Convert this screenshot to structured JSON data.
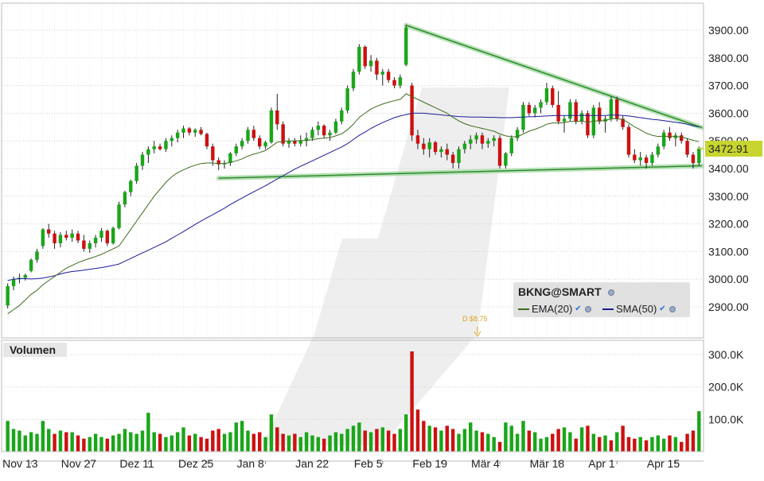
{
  "chart_data": [
    {
      "type": "candlestick",
      "ylim": [
        2860,
        3960
      ],
      "y_ticks": [
        "3900.00",
        "3800.00",
        "3700.00",
        "3600.00",
        "3500.00",
        "3400.00",
        "3300.00",
        "3200.00",
        "3100.00",
        "3000.00",
        "2900.00"
      ],
      "x_ticks": [
        "Nov 13",
        "Nov 27",
        "Dez 11",
        "Dez 25",
        "Jan 8",
        "Jan 22",
        "Feb 5",
        "Feb 19",
        "Mär 4",
        "Mär 18",
        "Apr 1",
        "Apr 15"
      ],
      "last_price": "3472.91",
      "ohlc": [
        [
          2905,
          2985,
          2895,
          2975
        ],
        [
          2975,
          3010,
          2960,
          3000
        ],
        [
          3000,
          3020,
          2985,
          3005
        ],
        [
          3005,
          3020,
          2995,
          3015
        ],
        [
          3030,
          3075,
          3025,
          3070
        ],
        [
          3070,
          3110,
          3060,
          3100
        ],
        [
          3120,
          3185,
          3110,
          3180
        ],
        [
          3180,
          3200,
          3150,
          3165
        ],
        [
          3165,
          3175,
          3110,
          3130
        ],
        [
          3130,
          3170,
          3115,
          3160
        ],
        [
          3160,
          3175,
          3140,
          3150
        ],
        [
          3150,
          3180,
          3135,
          3165
        ],
        [
          3165,
          3175,
          3130,
          3140
        ],
        [
          3140,
          3160,
          3100,
          3110
        ],
        [
          3110,
          3140,
          3095,
          3130
        ],
        [
          3130,
          3160,
          3115,
          3150
        ],
        [
          3150,
          3185,
          3135,
          3175
        ],
        [
          3175,
          3180,
          3120,
          3130
        ],
        [
          3130,
          3190,
          3125,
          3185
        ],
        [
          3185,
          3280,
          3180,
          3270
        ],
        [
          3270,
          3320,
          3260,
          3315
        ],
        [
          3315,
          3360,
          3300,
          3355
        ],
        [
          3355,
          3420,
          3345,
          3410
        ],
        [
          3410,
          3460,
          3395,
          3450
        ],
        [
          3450,
          3480,
          3420,
          3470
        ],
        [
          3470,
          3500,
          3455,
          3480
        ],
        [
          3480,
          3490,
          3465,
          3470
        ],
        [
          3470,
          3510,
          3460,
          3500
        ],
        [
          3500,
          3520,
          3480,
          3510
        ],
        [
          3510,
          3540,
          3495,
          3530
        ],
        [
          3530,
          3555,
          3510,
          3545
        ],
        [
          3545,
          3550,
          3520,
          3530
        ],
        [
          3530,
          3545,
          3515,
          3540
        ],
        [
          3540,
          3550,
          3520,
          3525
        ],
        [
          3525,
          3530,
          3470,
          3480
        ],
        [
          3480,
          3490,
          3410,
          3430
        ],
        [
          3430,
          3440,
          3395,
          3415
        ],
        [
          3415,
          3430,
          3400,
          3420
        ],
        [
          3420,
          3460,
          3410,
          3455
        ],
        [
          3455,
          3490,
          3445,
          3480
        ],
        [
          3480,
          3510,
          3470,
          3500
        ],
        [
          3500,
          3550,
          3490,
          3540
        ],
        [
          3540,
          3555,
          3500,
          3510
        ],
        [
          3510,
          3520,
          3470,
          3480
        ],
        [
          3480,
          3500,
          3470,
          3495
        ],
        [
          3495,
          3620,
          3490,
          3610
        ],
        [
          3610,
          3670,
          3540,
          3560
        ],
        [
          3560,
          3570,
          3480,
          3490
        ],
        [
          3490,
          3510,
          3475,
          3500
        ],
        [
          3500,
          3510,
          3480,
          3490
        ],
        [
          3490,
          3520,
          3480,
          3500
        ],
        [
          3500,
          3530,
          3480,
          3510
        ],
        [
          3510,
          3550,
          3500,
          3540
        ],
        [
          3540,
          3570,
          3520,
          3555
        ],
        [
          3555,
          3560,
          3510,
          3520
        ],
        [
          3520,
          3540,
          3500,
          3530
        ],
        [
          3530,
          3580,
          3525,
          3570
        ],
        [
          3570,
          3620,
          3560,
          3610
        ],
        [
          3610,
          3700,
          3600,
          3690
        ],
        [
          3690,
          3760,
          3680,
          3750
        ],
        [
          3750,
          3850,
          3740,
          3840
        ],
        [
          3840,
          3845,
          3760,
          3770
        ],
        [
          3770,
          3810,
          3750,
          3790
        ],
        [
          3790,
          3800,
          3720,
          3740
        ],
        [
          3740,
          3760,
          3700,
          3750
        ],
        [
          3750,
          3760,
          3710,
          3720
        ],
        [
          3720,
          3730,
          3690,
          3700
        ],
        [
          3700,
          3740,
          3690,
          3730
        ],
        [
          3775,
          3920,
          3770,
          3910
        ],
        [
          3700,
          3710,
          3500,
          3520
        ],
        [
          3520,
          3540,
          3470,
          3490
        ],
        [
          3490,
          3510,
          3450,
          3470
        ],
        [
          3470,
          3510,
          3440,
          3495
        ],
        [
          3495,
          3500,
          3450,
          3460
        ],
        [
          3460,
          3480,
          3440,
          3470
        ],
        [
          3470,
          3490,
          3430,
          3450
        ],
        [
          3450,
          3460,
          3400,
          3420
        ],
        [
          3420,
          3480,
          3400,
          3470
        ],
        [
          3470,
          3500,
          3455,
          3490
        ],
        [
          3490,
          3520,
          3470,
          3505
        ],
        [
          3505,
          3530,
          3490,
          3520
        ],
        [
          3520,
          3530,
          3470,
          3490
        ],
        [
          3490,
          3510,
          3475,
          3500
        ],
        [
          3500,
          3520,
          3480,
          3510
        ],
        [
          3510,
          3520,
          3400,
          3410
        ],
        [
          3410,
          3460,
          3400,
          3455
        ],
        [
          3455,
          3520,
          3445,
          3510
        ],
        [
          3510,
          3550,
          3500,
          3540
        ],
        [
          3540,
          3640,
          3530,
          3630
        ],
        [
          3630,
          3640,
          3590,
          3600
        ],
        [
          3600,
          3630,
          3585,
          3620
        ],
        [
          3620,
          3650,
          3600,
          3640
        ],
        [
          3640,
          3710,
          3630,
          3690
        ],
        [
          3690,
          3700,
          3620,
          3630
        ],
        [
          3630,
          3680,
          3560,
          3570
        ],
        [
          3570,
          3590,
          3530,
          3580
        ],
        [
          3580,
          3650,
          3570,
          3640
        ],
        [
          3640,
          3650,
          3560,
          3570
        ],
        [
          3570,
          3610,
          3560,
          3600
        ],
        [
          3600,
          3610,
          3510,
          3520
        ],
        [
          3520,
          3630,
          3510,
          3620
        ],
        [
          3620,
          3640,
          3560,
          3570
        ],
        [
          3570,
          3590,
          3530,
          3580
        ],
        [
          3580,
          3660,
          3570,
          3650
        ],
        [
          3650,
          3660,
          3570,
          3580
        ],
        [
          3580,
          3590,
          3540,
          3550
        ],
        [
          3550,
          3560,
          3440,
          3450
        ],
        [
          3450,
          3470,
          3420,
          3430
        ],
        [
          3430,
          3460,
          3410,
          3440
        ],
        [
          3440,
          3450,
          3400,
          3420
        ],
        [
          3420,
          3460,
          3410,
          3450
        ],
        [
          3450,
          3490,
          3440,
          3480
        ],
        [
          3480,
          3540,
          3470,
          3530
        ],
        [
          3530,
          3550,
          3500,
          3510
        ],
        [
          3510,
          3530,
          3480,
          3520
        ],
        [
          3520,
          3530,
          3490,
          3500
        ],
        [
          3500,
          3510,
          3440,
          3450
        ],
        [
          3450,
          3460,
          3400,
          3420
        ],
        [
          3420,
          3480,
          3410,
          3472.91
        ]
      ],
      "ema20": [
        2875,
        2890,
        2905,
        2925,
        2945,
        2960,
        2980,
        2995,
        3010,
        3025,
        3040,
        3050,
        3060,
        3068,
        3075,
        3082,
        3090,
        3100,
        3110,
        3120,
        3150,
        3180,
        3210,
        3240,
        3270,
        3300,
        3325,
        3350,
        3370,
        3385,
        3395,
        3405,
        3412,
        3418,
        3420,
        3420,
        3418,
        3418,
        3422,
        3428,
        3435,
        3445,
        3452,
        3458,
        3465,
        3480,
        3495,
        3498,
        3500,
        3500,
        3501,
        3502,
        3504,
        3508,
        3510,
        3512,
        3518,
        3526,
        3540,
        3560,
        3585,
        3600,
        3615,
        3625,
        3633,
        3640,
        3645,
        3650,
        3670,
        3660,
        3650,
        3640,
        3630,
        3620,
        3610,
        3600,
        3585,
        3572,
        3562,
        3555,
        3550,
        3545,
        3540,
        3535,
        3525,
        3518,
        3515,
        3515,
        3525,
        3535,
        3542,
        3550,
        3560,
        3565,
        3565,
        3566,
        3570,
        3570,
        3572,
        3567,
        3572,
        3572,
        3573,
        3580,
        3580,
        3577,
        3565,
        3551,
        3540,
        3528,
        3520,
        3516,
        3517,
        3516,
        3516,
        3514,
        3508,
        3502,
        3497
      ],
      "sma50": [
        2995,
        3000,
        3002,
        3002,
        3001,
        3002,
        3004,
        3008,
        3013,
        3019,
        3024,
        3028,
        3030,
        3033,
        3036,
        3039,
        3042,
        3046,
        3050,
        3055,
        3065,
        3075,
        3085,
        3095,
        3105,
        3115,
        3125,
        3135,
        3148,
        3160,
        3172,
        3185,
        3198,
        3210,
        3222,
        3233,
        3245,
        3257,
        3270,
        3282,
        3293,
        3305,
        3316,
        3327,
        3338,
        3350,
        3362,
        3374,
        3386,
        3398,
        3408,
        3418,
        3428,
        3438,
        3448,
        3458,
        3468,
        3478,
        3490,
        3505,
        3520,
        3532,
        3545,
        3556,
        3566,
        3575,
        3584,
        3590,
        3595,
        3600,
        3600,
        3600,
        3598,
        3596,
        3594,
        3592,
        3590,
        3588,
        3587,
        3586,
        3586,
        3586,
        3585,
        3585,
        3584,
        3584,
        3584,
        3585,
        3586,
        3587,
        3588,
        3589,
        3590,
        3591,
        3592,
        3592,
        3592,
        3592,
        3592,
        3592,
        3592,
        3592,
        3592,
        3593,
        3593,
        3592,
        3590,
        3587,
        3584,
        3581,
        3578,
        3576,
        3573,
        3570,
        3567,
        3564,
        3560,
        3555,
        3550
      ],
      "legend": {
        "title": "BKNG@SMART",
        "ema": "EMA(20)",
        "sma": "SMA(50)"
      },
      "dividend_label": "D $8.75",
      "colors": {
        "up": "#1aa61a",
        "down": "#cc1111",
        "ema": "#3d6b1c",
        "sma": "#1a1a9a",
        "trend": "#4caf50",
        "price_tag": "#c8d42f"
      }
    },
    {
      "type": "bar",
      "title": "Volumen",
      "y_ticks": [
        "300.0K",
        "200.0K",
        "100.0K"
      ],
      "ylim": [
        0,
        340000
      ],
      "volume": [
        95000,
        70000,
        65000,
        50000,
        60000,
        55000,
        95000,
        70000,
        55000,
        65000,
        60000,
        60000,
        50000,
        40000,
        45000,
        55000,
        45000,
        40000,
        50000,
        55000,
        70000,
        60000,
        55000,
        65000,
        120000,
        60000,
        55000,
        45000,
        50000,
        60000,
        75000,
        50000,
        55000,
        45000,
        40000,
        65000,
        70000,
        55000,
        60000,
        90000,
        95000,
        65000,
        55000,
        60000,
        45000,
        115000,
        75000,
        55000,
        50000,
        55000,
        45000,
        60000,
        50000,
        45000,
        40000,
        50000,
        60000,
        55000,
        70000,
        80000,
        90000,
        65000,
        60000,
        70000,
        75000,
        65000,
        55000,
        70000,
        115000,
        310000,
        130000,
        95000,
        80000,
        75000,
        65000,
        80000,
        70000,
        55000,
        70000,
        90000,
        65000,
        60000,
        55000,
        45000,
        30000,
        90000,
        80000,
        55000,
        95000,
        65000,
        60000,
        40000,
        45000,
        55000,
        70000,
        75000,
        60000,
        40000,
        75000,
        80000,
        55000,
        45000,
        50000,
        35000,
        60000,
        80000,
        45000,
        40000,
        45000,
        35000,
        45000,
        50000,
        40000,
        50000,
        45000,
        30000,
        55000,
        65000,
        125000
      ],
      "volume_up": [
        1,
        1,
        1,
        1,
        1,
        1,
        1,
        1,
        0,
        1,
        0,
        1,
        0,
        0,
        1,
        1,
        1,
        0,
        1,
        1,
        1,
        1,
        1,
        1,
        1,
        1,
        0,
        1,
        1,
        1,
        1,
        0,
        1,
        0,
        0,
        0,
        0,
        1,
        1,
        1,
        1,
        1,
        0,
        0,
        1,
        1,
        0,
        0,
        1,
        0,
        1,
        1,
        1,
        1,
        0,
        1,
        1,
        1,
        1,
        1,
        1,
        0,
        1,
        0,
        1,
        0,
        0,
        1,
        1,
        0,
        0,
        0,
        1,
        0,
        1,
        0,
        0,
        1,
        1,
        1,
        1,
        0,
        1,
        1,
        0,
        1,
        1,
        1,
        1,
        0,
        1,
        1,
        1,
        0,
        0,
        1,
        1,
        0,
        1,
        0,
        1,
        0,
        1,
        0,
        1,
        0,
        0,
        0,
        1,
        0,
        1,
        1,
        1,
        0,
        1,
        0,
        0,
        0,
        1
      ]
    }
  ]
}
